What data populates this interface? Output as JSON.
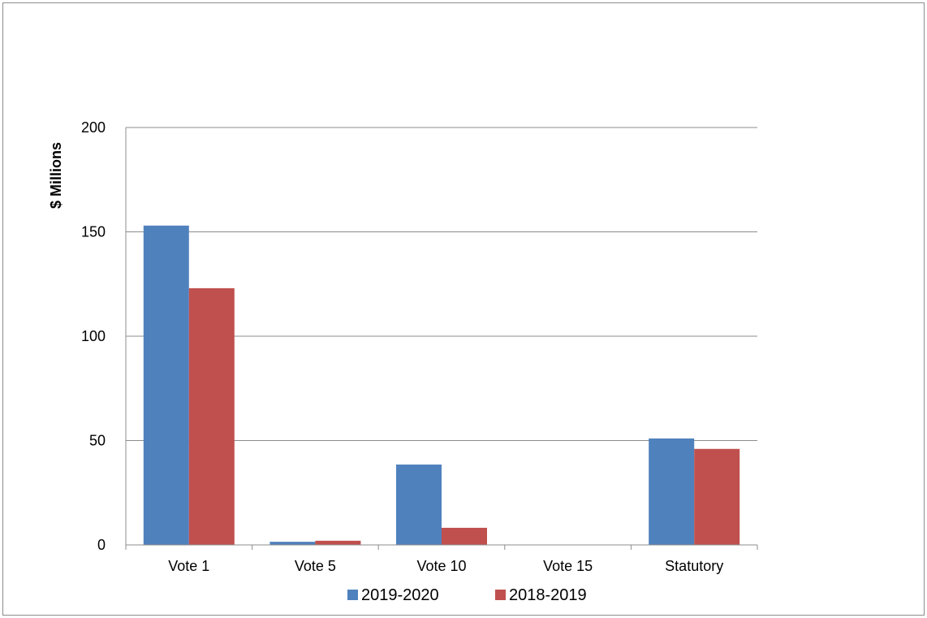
{
  "chart_data": {
    "type": "bar",
    "categories": [
      "Vote 1",
      "Vote 5",
      "Vote 10",
      "Vote 15",
      "Statutory"
    ],
    "series": [
      {
        "name": "2019-2020",
        "values": [
          153,
          1.5,
          38.5,
          0,
          51
        ],
        "color": "#4f81bd"
      },
      {
        "name": "2018-2019",
        "values": [
          123,
          2,
          8.2,
          0,
          46
        ],
        "color": "#c0504d"
      }
    ],
    "ylabel": "$ Millions",
    "xlabel": "",
    "title": "",
    "ylim": [
      0,
      200
    ],
    "yticks": [
      "0",
      "50",
      "100",
      "150",
      "200"
    ],
    "grid": true,
    "legend_position": "bottom"
  }
}
